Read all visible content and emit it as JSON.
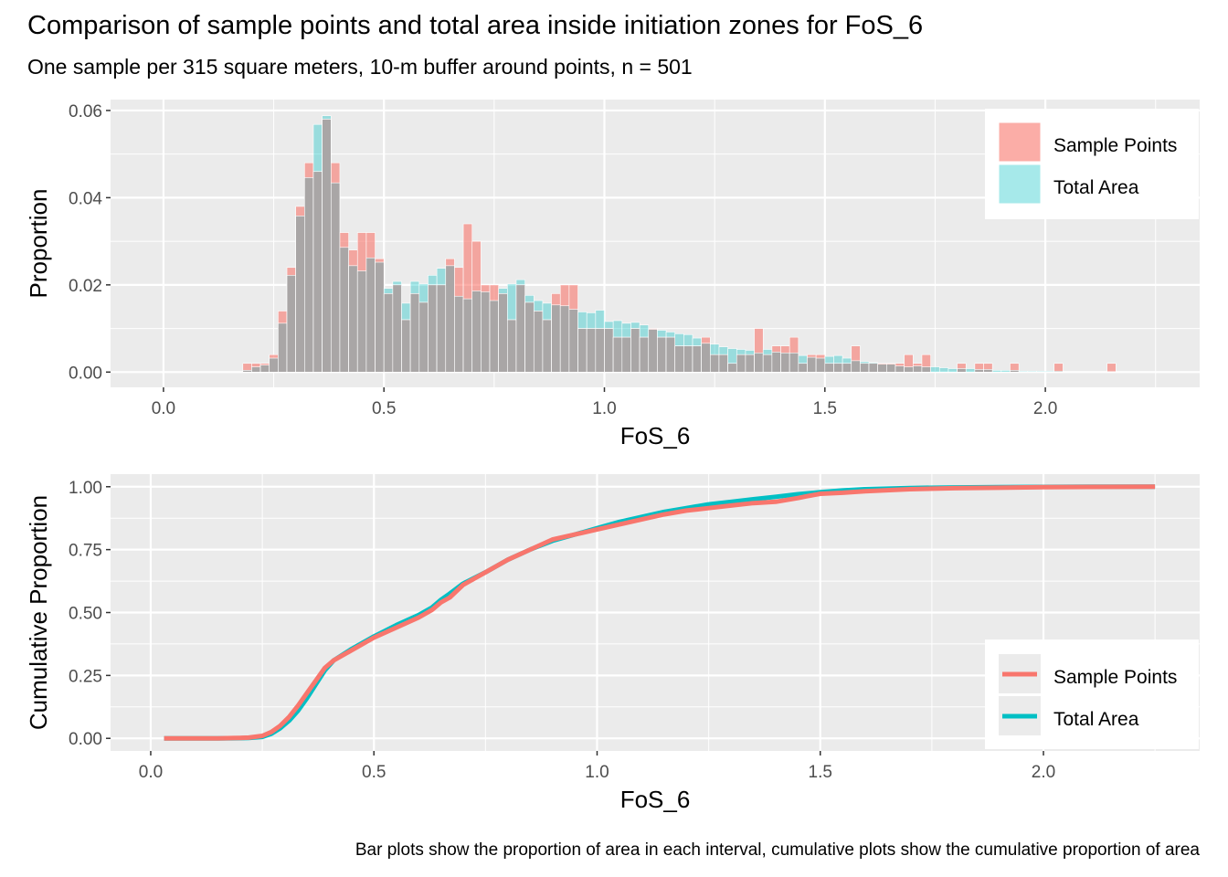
{
  "title": "Comparison of sample points and total area inside initiation zones for FoS_6",
  "subtitle": "One sample per 315 square meters, 10-m buffer around points, n = 501",
  "caption": "Bar plots show the proportion of area in each interval, cumulative plots show the cumulative proportion of area",
  "colors": {
    "sample_points": "#F8766D",
    "total_area": "#00BFC4",
    "panel_bg": "#EBEBEB",
    "overlap": "#A6A6A6"
  },
  "chart_data": [
    {
      "type": "bar",
      "xlabel": "FoS_6",
      "ylabel": "Proportion",
      "xlim": [
        -0.12,
        2.35
      ],
      "ylim": [
        -0.0035,
        0.0625
      ],
      "x_ticks": [
        "0.0",
        "0.5",
        "1.0",
        "1.5",
        "2.0"
      ],
      "y_ticks": [
        "0.00",
        "0.02",
        "0.04",
        "0.06"
      ],
      "legend_position": "top-right",
      "bin_width": 0.02,
      "x": [
        0.19,
        0.21,
        0.23,
        0.25,
        0.27,
        0.29,
        0.31,
        0.33,
        0.35,
        0.37,
        0.39,
        0.41,
        0.43,
        0.45,
        0.47,
        0.49,
        0.51,
        0.53,
        0.55,
        0.57,
        0.59,
        0.61,
        0.63,
        0.65,
        0.67,
        0.69,
        0.71,
        0.73,
        0.75,
        0.77,
        0.79,
        0.81,
        0.83,
        0.85,
        0.87,
        0.89,
        0.91,
        0.93,
        0.95,
        0.97,
        0.99,
        1.01,
        1.03,
        1.05,
        1.07,
        1.09,
        1.11,
        1.13,
        1.15,
        1.17,
        1.19,
        1.21,
        1.23,
        1.25,
        1.27,
        1.29,
        1.31,
        1.33,
        1.35,
        1.37,
        1.39,
        1.41,
        1.43,
        1.45,
        1.47,
        1.49,
        1.51,
        1.53,
        1.55,
        1.57,
        1.59,
        1.61,
        1.63,
        1.65,
        1.67,
        1.69,
        1.71,
        1.73,
        1.75,
        1.77,
        1.79,
        1.81,
        1.83,
        1.85,
        1.87,
        1.89,
        1.91,
        1.93,
        1.95,
        1.97,
        1.99,
        2.01,
        2.03,
        2.05,
        2.07,
        2.09,
        2.11,
        2.13,
        2.15,
        2.17
      ],
      "series": [
        {
          "name": "Sample Points",
          "values": [
            0.002,
            0.002,
            0.002,
            0.004,
            0.014,
            0.024,
            0.038,
            0.048,
            0.046,
            0.058,
            0.048,
            0.032,
            0.028,
            0.032,
            0.032,
            0.026,
            0.018,
            0.02,
            0.012,
            0.018,
            0.016,
            0.02,
            0.02,
            0.026,
            0.024,
            0.034,
            0.03,
            0.02,
            0.02,
            0.018,
            0.012,
            0.02,
            0.016,
            0.014,
            0.012,
            0.018,
            0.02,
            0.02,
            0.01,
            0.01,
            0.01,
            0.01,
            0.008,
            0.008,
            0.01,
            0.008,
            0.01,
            0.008,
            0.008,
            0.006,
            0.006,
            0.006,
            0.008,
            0.004,
            0.004,
            0.002,
            0.004,
            0.004,
            0.01,
            0.004,
            0.006,
            0.006,
            0.008,
            0.002,
            0.004,
            0.004,
            0.002,
            0.002,
            0.002,
            0.006,
            0.002,
            0.002,
            0.002,
            0.002,
            0.002,
            0.004,
            0.002,
            0.004,
            0,
            0,
            0,
            0.002,
            0,
            0.002,
            0.002,
            0,
            0,
            0.002,
            0,
            0,
            0,
            0,
            0.002,
            0,
            0,
            0,
            0,
            0,
            0.002,
            0
          ]
        },
        {
          "name": "Total Area",
          "values": [
            0.0004,
            0.0012,
            0.0016,
            0.0032,
            0.0112,
            0.0222,
            0.0358,
            0.0446,
            0.0568,
            0.0588,
            0.0434,
            0.0286,
            0.0244,
            0.0232,
            0.0262,
            0.0252,
            0.0192,
            0.0208,
            0.0158,
            0.0208,
            0.0202,
            0.0222,
            0.0238,
            0.0244,
            0.0174,
            0.0168,
            0.0186,
            0.0184,
            0.0164,
            0.0192,
            0.0202,
            0.0212,
            0.0176,
            0.0164,
            0.0158,
            0.0154,
            0.0152,
            0.0144,
            0.0138,
            0.0136,
            0.0142,
            0.0116,
            0.0118,
            0.0112,
            0.0114,
            0.0108,
            0.0098,
            0.0096,
            0.0092,
            0.0088,
            0.0086,
            0.0078,
            0.0066,
            0.0064,
            0.0058,
            0.0054,
            0.0052,
            0.005,
            0.0044,
            0.0052,
            0.0046,
            0.0044,
            0.0044,
            0.0038,
            0.0034,
            0.0032,
            0.0036,
            0.0038,
            0.0032,
            0.0026,
            0.0024,
            0.0022,
            0.0018,
            0.0018,
            0.0014,
            0.0012,
            0.0014,
            0.0012,
            0.0012,
            0.001,
            0.0008,
            0.0008,
            0.0008,
            0.0006,
            0.0006,
            0.0004,
            0.0004,
            0.0004,
            0.0002,
            0.0002,
            0.0002,
            0.0002,
            0.0002,
            0.0001,
            0.0001,
            0.0001,
            0.0001,
            0.0001,
            0.0001,
            0.0001
          ]
        }
      ]
    },
    {
      "type": "line",
      "xlabel": "FoS_6",
      "ylabel": "Cumulative Proportion",
      "xlim": [
        -0.09,
        2.35
      ],
      "ylim": [
        -0.05,
        1.05
      ],
      "x_ticks": [
        "0.0",
        "0.5",
        "1.0",
        "1.5",
        "2.0"
      ],
      "y_ticks": [
        "0.00",
        "0.25",
        "0.50",
        "0.75",
        "1.00"
      ],
      "legend_position": "bottom-right",
      "series": [
        {
          "name": "Sample Points",
          "x": [
            0.03,
            0.1,
            0.15,
            0.2,
            0.22,
            0.25,
            0.27,
            0.29,
            0.31,
            0.33,
            0.35,
            0.37,
            0.39,
            0.41,
            0.45,
            0.5,
            0.55,
            0.6,
            0.63,
            0.65,
            0.67,
            0.7,
            0.75,
            0.8,
            0.85,
            0.9,
            0.95,
            1.0,
            1.05,
            1.1,
            1.15,
            1.2,
            1.25,
            1.3,
            1.35,
            1.4,
            1.45,
            1.47,
            1.5,
            1.55,
            1.6,
            1.7,
            1.8,
            1.9,
            2.0,
            2.1,
            2.25
          ],
          "y": [
            0,
            0,
            0,
            0.002,
            0.003,
            0.01,
            0.025,
            0.05,
            0.085,
            0.13,
            0.18,
            0.23,
            0.28,
            0.31,
            0.35,
            0.4,
            0.44,
            0.48,
            0.51,
            0.54,
            0.56,
            0.61,
            0.66,
            0.71,
            0.75,
            0.79,
            0.81,
            0.83,
            0.85,
            0.87,
            0.89,
            0.905,
            0.915,
            0.925,
            0.935,
            0.94,
            0.955,
            0.962,
            0.972,
            0.976,
            0.982,
            0.99,
            0.994,
            0.996,
            0.998,
            0.999,
            1.0
          ]
        },
        {
          "name": "Total Area",
          "x": [
            0.03,
            0.1,
            0.15,
            0.2,
            0.22,
            0.25,
            0.27,
            0.29,
            0.31,
            0.33,
            0.35,
            0.37,
            0.39,
            0.41,
            0.45,
            0.5,
            0.55,
            0.6,
            0.63,
            0.65,
            0.67,
            0.7,
            0.75,
            0.8,
            0.85,
            0.9,
            0.95,
            1.0,
            1.05,
            1.1,
            1.15,
            1.2,
            1.25,
            1.3,
            1.35,
            1.4,
            1.45,
            1.5,
            1.55,
            1.6,
            1.7,
            1.8,
            1.9,
            2.0,
            2.1,
            2.25
          ],
          "y": [
            0,
            0,
            0,
            0.001,
            0.002,
            0.006,
            0.018,
            0.04,
            0.07,
            0.11,
            0.16,
            0.215,
            0.27,
            0.31,
            0.355,
            0.405,
            0.45,
            0.49,
            0.52,
            0.55,
            0.575,
            0.615,
            0.66,
            0.71,
            0.75,
            0.785,
            0.81,
            0.835,
            0.86,
            0.88,
            0.9,
            0.915,
            0.93,
            0.94,
            0.95,
            0.96,
            0.97,
            0.978,
            0.985,
            0.99,
            0.995,
            0.997,
            0.998,
            0.999,
            1.0,
            1.0
          ]
        }
      ]
    }
  ]
}
